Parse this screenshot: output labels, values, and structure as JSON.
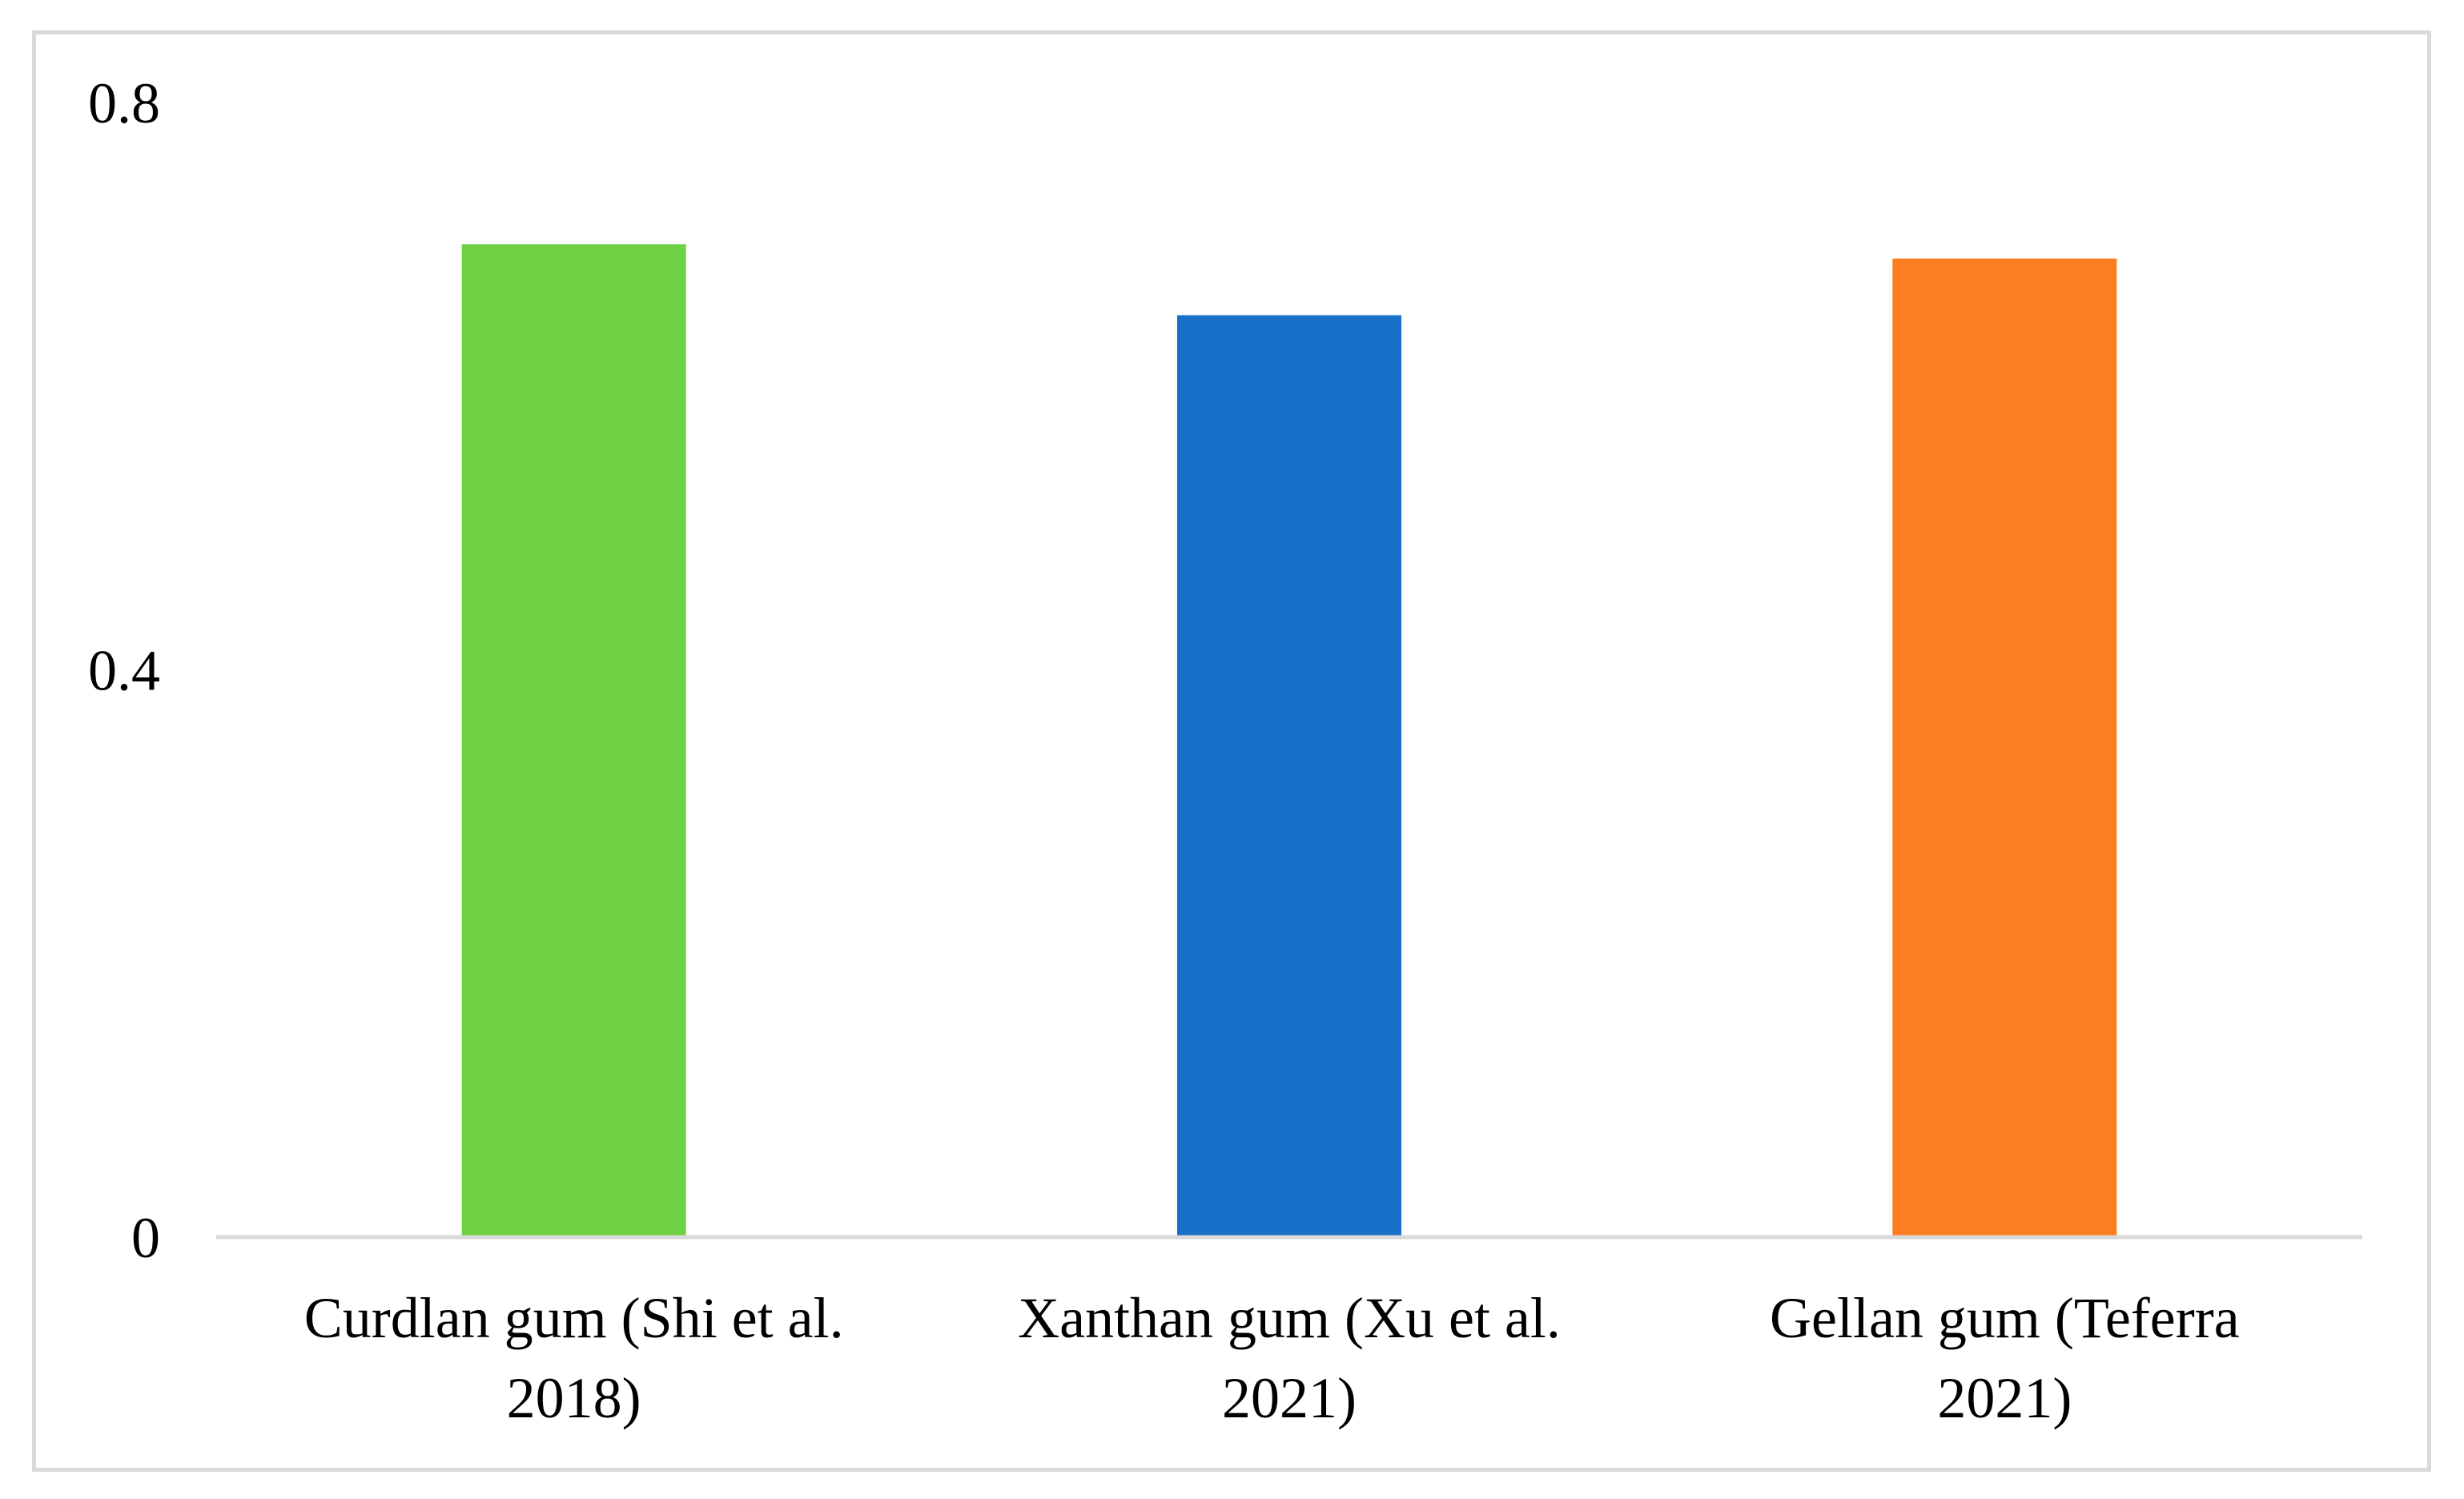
{
  "chart_data": {
    "type": "bar",
    "categories": [
      [
        "Curdlan gum (Shi et al.",
        "2018)"
      ],
      [
        "Xanthan gum (Xu et al.",
        "2021)"
      ],
      [
        "Gellan gum (Teferra",
        "2021)"
      ]
    ],
    "values": [
      0.7,
      0.65,
      0.69
    ],
    "colors": [
      "#6ed143",
      "#1771c8",
      "#fc7d22"
    ],
    "ylim": [
      0,
      0.8
    ],
    "yticks": [
      "0",
      "0.4",
      "0.8"
    ],
    "grid": false,
    "title": "",
    "xlabel": "",
    "ylabel": ""
  }
}
